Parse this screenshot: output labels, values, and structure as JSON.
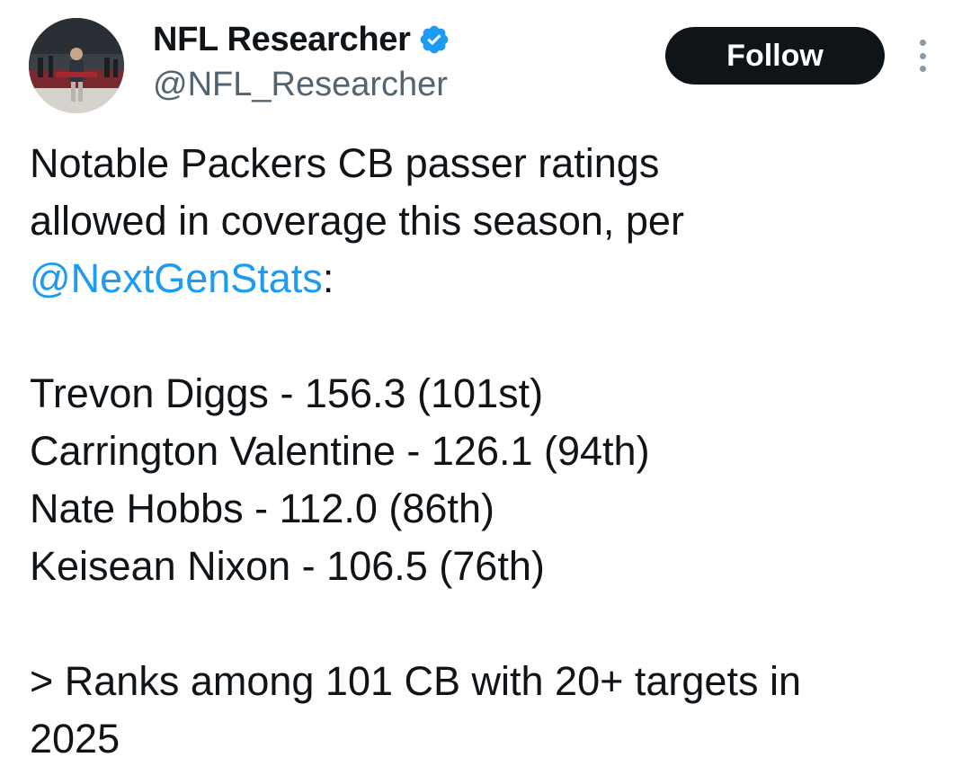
{
  "author": {
    "display_name": "NFL Researcher",
    "handle": "@NFL_Researcher",
    "verified": true,
    "avatar_icon": "avatar-photo"
  },
  "actions": {
    "follow_label": "Follow",
    "more_icon": "more-vertical-icon"
  },
  "tweet": {
    "intro_line1": "Notable Packers CB passer ratings",
    "intro_line2": "allowed in coverage this season, per",
    "mention": "@NextGenStats",
    "mention_suffix": ":",
    "players": [
      "Trevon Diggs - 156.3 (101st)",
      "Carrington Valentine - 126.1 (94th)",
      "Nate Hobbs - 112.0 (86th)",
      "Keisean Nixon - 106.5 (76th)"
    ],
    "note_line1": "> Ranks among 101 CB with 20+ targets in",
    "note_line2": "2025"
  },
  "colors": {
    "text": "#0f1419",
    "secondary": "#536471",
    "link": "#1d9bf0",
    "verified": "#1d9bf0",
    "follow_bg": "#0f1419"
  }
}
